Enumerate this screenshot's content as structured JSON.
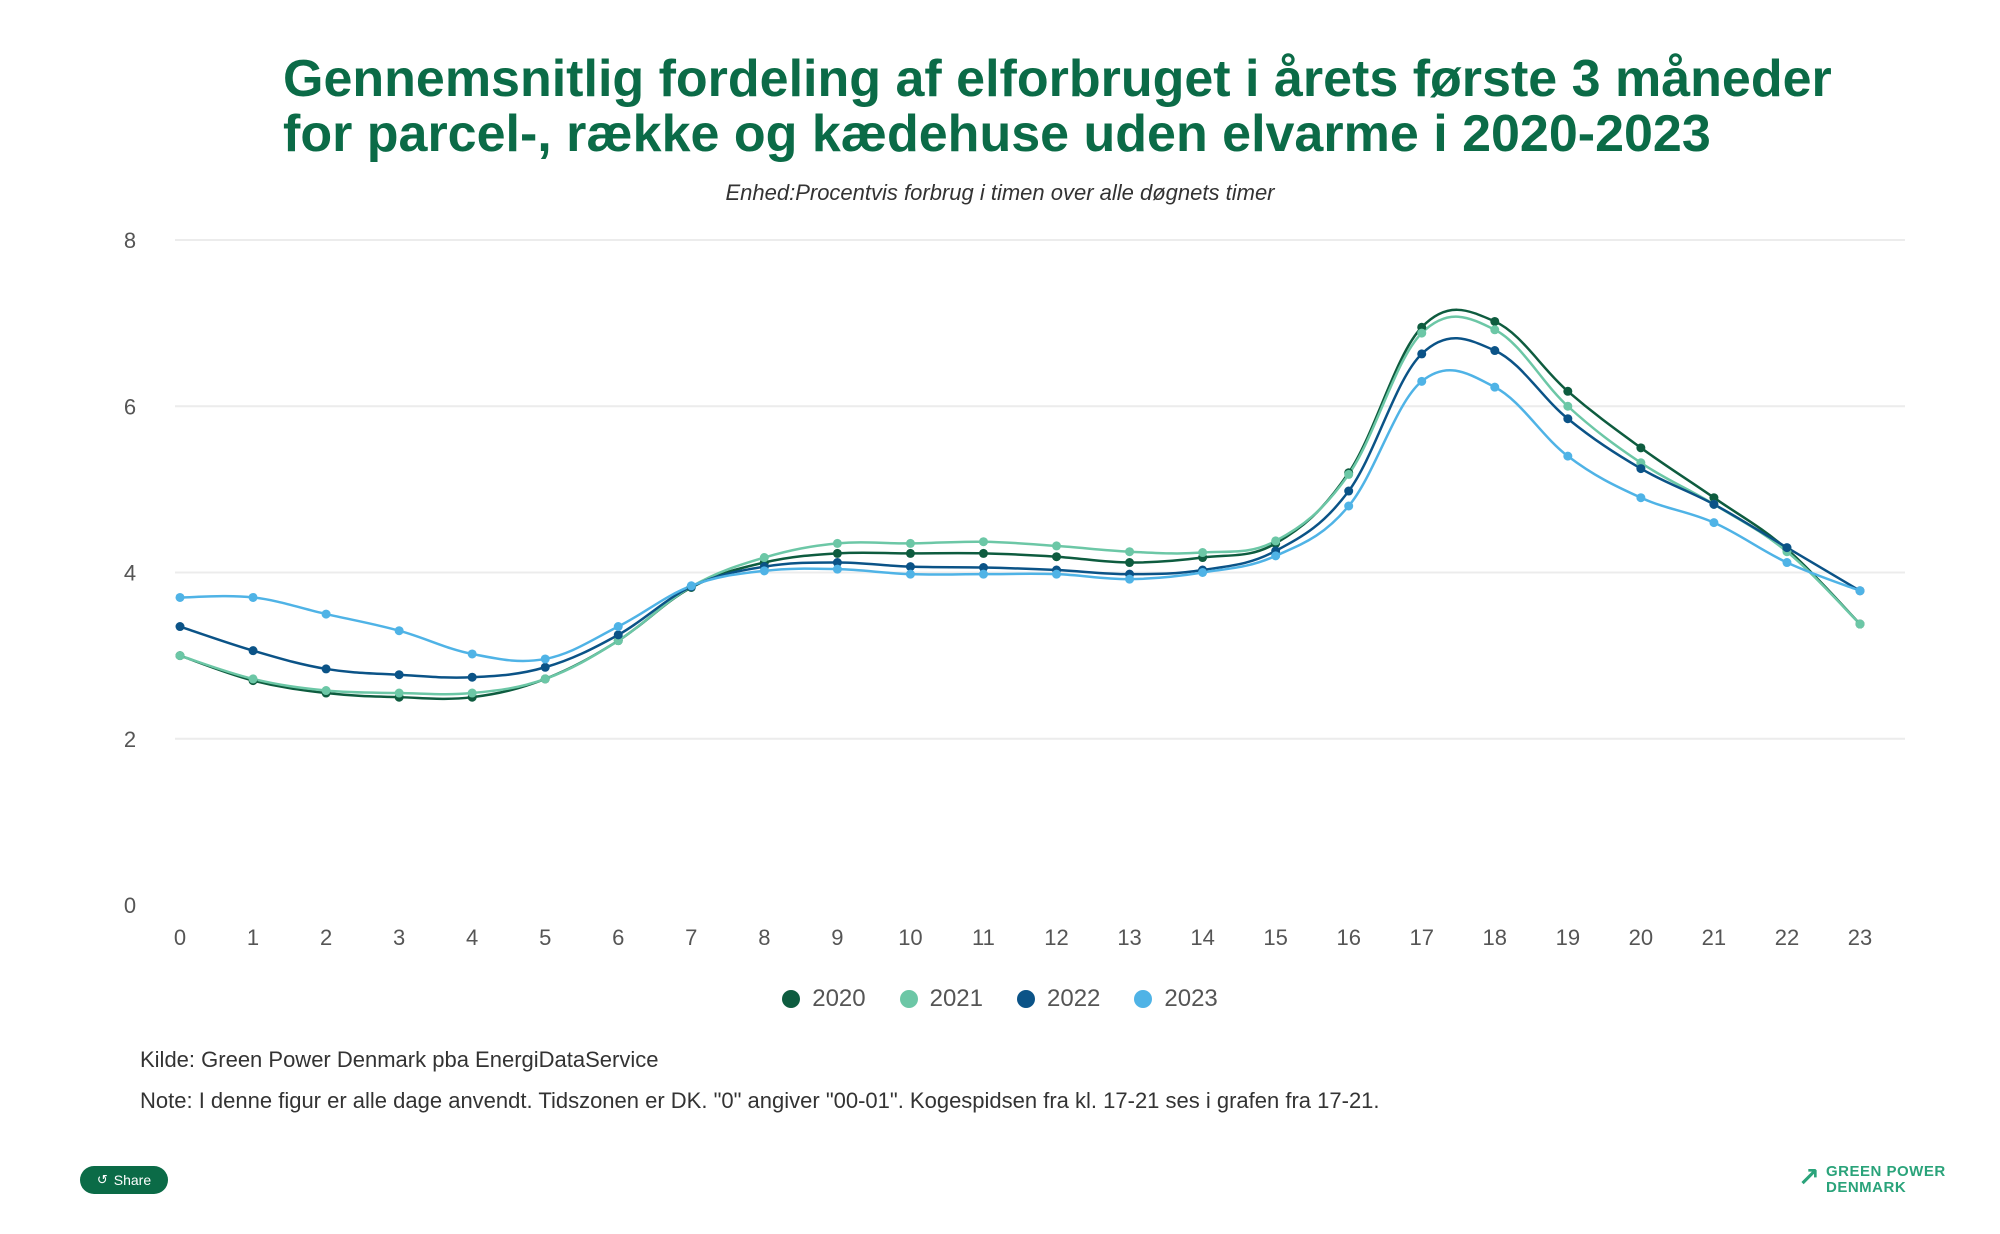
{
  "chart_data": {
    "type": "line",
    "title_line1": "Gennemsnitlig fordeling af elforbruget i årets første 3 måneder",
    "title_line2": "for parcel-, række og kædehuse uden elvarme i 2020-2023",
    "subtitle": "Enhed:Procentvis forbrug i timen over alle døgnets timer",
    "x": [
      "0",
      "1",
      "2",
      "3",
      "4",
      "5",
      "6",
      "7",
      "8",
      "9",
      "10",
      "11",
      "12",
      "13",
      "14",
      "15",
      "16",
      "17",
      "18",
      "19",
      "20",
      "21",
      "22",
      "23"
    ],
    "ylim": [
      0,
      8
    ],
    "yticks": [
      "0",
      "2",
      "4",
      "6",
      "8"
    ],
    "grid": true,
    "legend_position": "bottom",
    "series": [
      {
        "name": "2020",
        "color": "#0e5c3f",
        "values": [
          3.0,
          2.7,
          2.55,
          2.5,
          2.5,
          2.72,
          3.18,
          3.82,
          4.12,
          4.23,
          4.23,
          4.23,
          4.19,
          4.12,
          4.18,
          4.35,
          5.2,
          6.95,
          7.02,
          6.18,
          5.5,
          4.9,
          4.28,
          3.38
        ]
      },
      {
        "name": "2021",
        "color": "#6cc7a6",
        "values": [
          3.0,
          2.72,
          2.58,
          2.55,
          2.55,
          2.72,
          3.18,
          3.83,
          4.18,
          4.35,
          4.35,
          4.37,
          4.32,
          4.25,
          4.24,
          4.38,
          5.18,
          6.88,
          6.92,
          6.0,
          5.32,
          4.82,
          4.25,
          3.38
        ]
      },
      {
        "name": "2022",
        "color": "#0b5387",
        "values": [
          3.35,
          3.06,
          2.84,
          2.77,
          2.74,
          2.86,
          3.25,
          3.83,
          4.07,
          4.12,
          4.07,
          4.06,
          4.03,
          3.98,
          4.03,
          4.26,
          4.98,
          6.63,
          6.67,
          5.85,
          5.25,
          4.82,
          4.3,
          3.78
        ]
      },
      {
        "name": "2023",
        "color": "#4fb3e6",
        "values": [
          3.7,
          3.7,
          3.5,
          3.3,
          3.02,
          2.96,
          3.35,
          3.84,
          4.02,
          4.04,
          3.98,
          3.98,
          3.98,
          3.92,
          4.0,
          4.2,
          4.8,
          6.3,
          6.23,
          5.4,
          4.9,
          4.6,
          4.12,
          3.78
        ]
      }
    ]
  },
  "footer": {
    "source": "Kilde: Green Power Denmark pba EnergiDataService",
    "note": "Note: I denne figur er alle dage anvendt. Tidszonen er DK. \"0\" angiver \"00-01\". Kogespidsen fra kl. 17-21 ses i grafen fra 17-21.",
    "share_label": "Share",
    "logo_line1": "GREEN POWER",
    "logo_line2": "DENMARK"
  }
}
